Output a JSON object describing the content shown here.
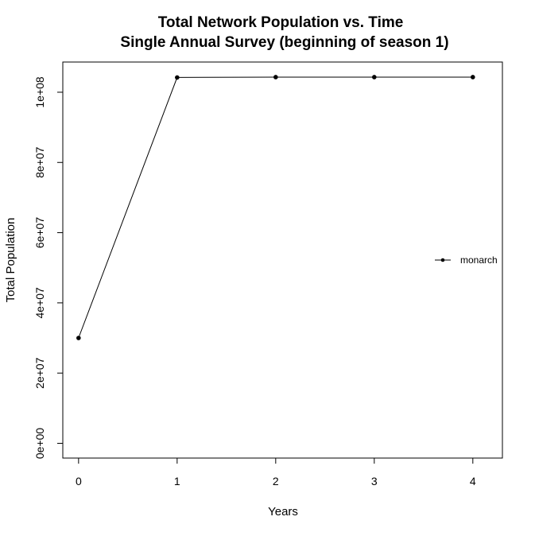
{
  "chart_data": {
    "type": "line",
    "title": "Total Network Population vs. Time",
    "subtitle": "Single Annual Survey (beginning of season 1)",
    "xlabel": "Years",
    "ylabel": "Total Population",
    "x": [
      0,
      1,
      2,
      3,
      4
    ],
    "series": [
      {
        "name": "monarch",
        "values": [
          30000000,
          104200000,
          104300000,
          104300000,
          104300000
        ]
      }
    ],
    "x_ticks": [
      0,
      1,
      2,
      3,
      4
    ],
    "x_tick_labels": [
      "0",
      "1",
      "2",
      "3",
      "4"
    ],
    "y_ticks": [
      0,
      20000000,
      40000000,
      60000000,
      80000000,
      100000000
    ],
    "y_tick_labels": [
      "0e+00",
      "2e+07",
      "4e+07",
      "6e+07",
      "8e+07",
      "1e+08"
    ],
    "xlim": [
      -0.16,
      4.3
    ],
    "ylim": [
      -4200000,
      108600000
    ],
    "grid": false,
    "legend_position": "right",
    "line_color": "#000000",
    "marker_color": "#000000"
  }
}
